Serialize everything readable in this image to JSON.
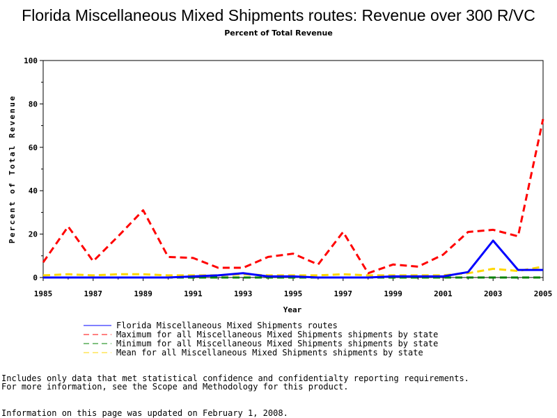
{
  "chart_data": {
    "type": "line",
    "title": "Florida Miscellaneous Mixed Shipments routes: Revenue over 300 R/VC",
    "subtitle": "Percent of Total Revenue",
    "xlabel": "Year",
    "ylabel": "Percent of Total Revenue",
    "xlim": [
      1985,
      2005
    ],
    "ylim": [
      0,
      100
    ],
    "x_ticks": [
      1985,
      1987,
      1989,
      1991,
      1993,
      1995,
      1997,
      1999,
      2001,
      2003,
      2005
    ],
    "y_ticks": [
      0,
      20,
      40,
      60,
      80,
      100
    ],
    "x_tick_labels": [
      "1985",
      "1987",
      "1989",
      "1991",
      "1993",
      "1995",
      "1997",
      "1999",
      "2001",
      "2003",
      "2005"
    ],
    "y_tick_labels": [
      "0",
      "20",
      "40",
      "60",
      "80",
      "100"
    ],
    "grid": false,
    "legend_position": "bottom",
    "x": [
      1985,
      1986,
      1987,
      1988,
      1989,
      1990,
      1991,
      1992,
      1993,
      1994,
      1995,
      1996,
      1997,
      1998,
      1999,
      2000,
      2001,
      2002,
      2003,
      2004,
      2005
    ],
    "series": [
      {
        "name": "Florida Miscellaneous Mixed Shipments routes",
        "color": "#0000ff",
        "dash": "solid",
        "values": [
          0,
          0,
          0,
          0,
          0,
          0,
          0.5,
          1,
          2,
          0.5,
          0.5,
          0,
          0,
          0,
          0.5,
          0.5,
          0.5,
          2.5,
          17,
          3.5,
          3.5
        ]
      },
      {
        "name": "Maximum for all Miscellaneous Mixed Shipments shipments by state",
        "color": "#ff0000",
        "dash": "dashed",
        "values": [
          7,
          23.5,
          7.5,
          19,
          31,
          9.5,
          9,
          4.5,
          4.5,
          9.5,
          11,
          6,
          21,
          2,
          6,
          5,
          10.5,
          21,
          22,
          19,
          73
        ]
      },
      {
        "name": "Minimum for all Miscellaneous Mixed Shipments shipments by state",
        "color": "#008000",
        "dash": "dashed",
        "values": [
          0,
          0,
          0,
          0,
          0,
          0,
          0,
          0,
          0,
          0,
          0,
          0,
          0,
          0,
          0,
          0,
          0,
          0,
          0,
          0,
          0
        ]
      },
      {
        "name": "Mean for all Miscellaneous Mixed Shipments shipments by state",
        "color": "#ffd700",
        "dash": "dashed",
        "values": [
          1,
          1.5,
          1,
          1.5,
          1.5,
          1,
          1,
          1,
          1.5,
          1,
          1,
          1,
          1.5,
          1,
          1,
          1,
          1,
          2,
          4,
          3,
          5
        ]
      }
    ]
  },
  "footnotes": [
    "Includes only data that met statistical confidence and confidentialty reporting requirements.",
    "For more information, see the Scope and Methodology for this product.",
    "Information on this page was updated on February 1, 2008."
  ]
}
